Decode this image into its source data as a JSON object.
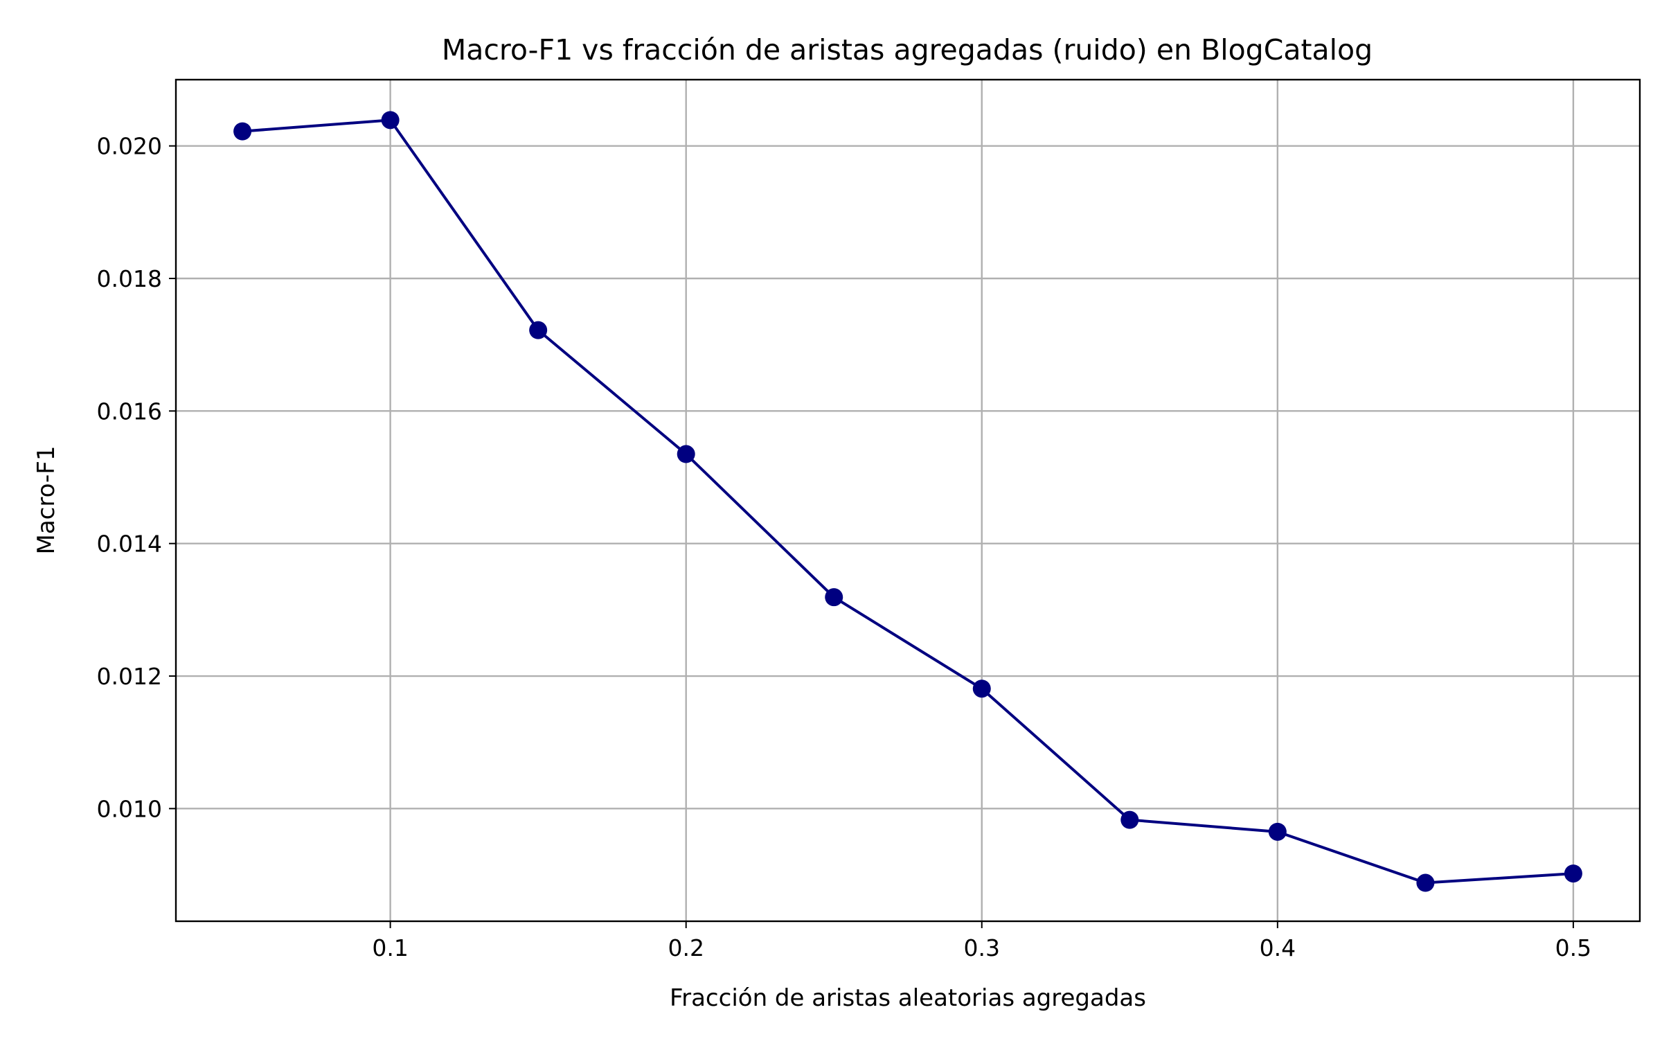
{
  "chart_data": {
    "type": "line",
    "title": "Macro-F1 vs fracción de aristas agregadas (ruido) en BlogCatalog",
    "xlabel": "Fracción de aristas aleatorias agregadas",
    "ylabel": "Macro-F1",
    "xlim": [
      0.0275,
      0.5225
    ],
    "ylim": [
      0.0083,
      0.021
    ],
    "x_ticks": [
      0.1,
      0.2,
      0.3,
      0.4,
      0.5
    ],
    "x_tick_labels": [
      "0.1",
      "0.2",
      "0.3",
      "0.4",
      "0.5"
    ],
    "y_ticks": [
      0.01,
      0.012,
      0.014,
      0.016,
      0.018,
      0.02
    ],
    "y_tick_labels": [
      "0.010",
      "0.012",
      "0.014",
      "0.016",
      "0.018",
      "0.020"
    ],
    "grid": true,
    "series": [
      {
        "color": "#000080",
        "marker": "circle",
        "x": [
          0.05,
          0.1,
          0.15,
          0.2,
          0.25,
          0.3,
          0.35,
          0.4,
          0.45,
          0.5
        ],
        "y": [
          0.02022,
          0.02039,
          0.01722,
          0.01535,
          0.01319,
          0.01181,
          0.00983,
          0.00965,
          0.00888,
          0.00902
        ]
      }
    ]
  }
}
